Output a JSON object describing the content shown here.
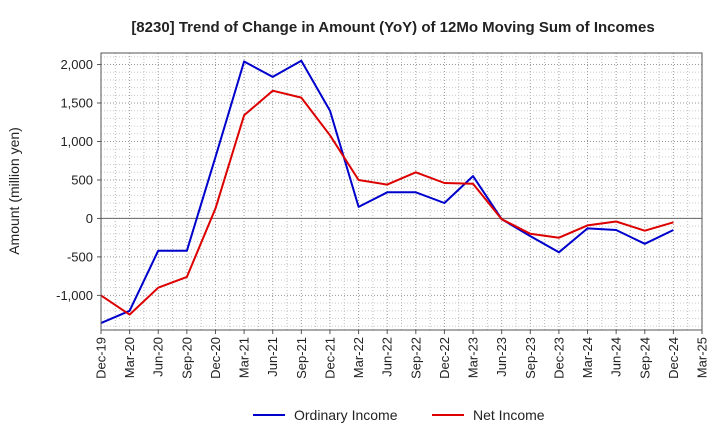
{
  "chart_data": {
    "type": "line",
    "title": "[8230]  Trend of Change in Amount (YoY) of 12Mo Moving Sum of Incomes",
    "xlabel": "",
    "ylabel": "Amount (million yen)",
    "ylim": [
      -1450,
      2150
    ],
    "yticks": [
      2000,
      1500,
      1000,
      500,
      0,
      -500,
      -1000
    ],
    "ytick_labels": [
      "2,000",
      "1,500",
      "1,000",
      "500",
      "0",
      "-500",
      "-1,000"
    ],
    "categories": [
      "Dec-19",
      "Mar-20",
      "Jun-20",
      "Sep-20",
      "Dec-20",
      "Mar-21",
      "Jun-21",
      "Sep-21",
      "Dec-21",
      "Mar-22",
      "Jun-22",
      "Sep-22",
      "Dec-22",
      "Mar-23",
      "Jun-23",
      "Sep-23",
      "Dec-23",
      "Mar-24",
      "Jun-24",
      "Sep-24",
      "Dec-24",
      "Mar-25"
    ],
    "grid": true,
    "legend_position": "bottom",
    "series": [
      {
        "name": "Ordinary Income",
        "color": "#0000cc",
        "values": [
          -1360,
          -1200,
          -420,
          -420,
          800,
          2040,
          1840,
          2050,
          1400,
          150,
          340,
          340,
          200,
          550,
          -10,
          -230,
          -440,
          -130,
          -150,
          -330,
          -150,
          null
        ]
      },
      {
        "name": "Net Income",
        "color": "#dd0000",
        "values": [
          -1000,
          -1250,
          -900,
          -760,
          130,
          1340,
          1660,
          1570,
          1080,
          500,
          440,
          600,
          460,
          450,
          -10,
          -200,
          -250,
          -90,
          -40,
          -160,
          -50,
          null
        ]
      }
    ]
  }
}
